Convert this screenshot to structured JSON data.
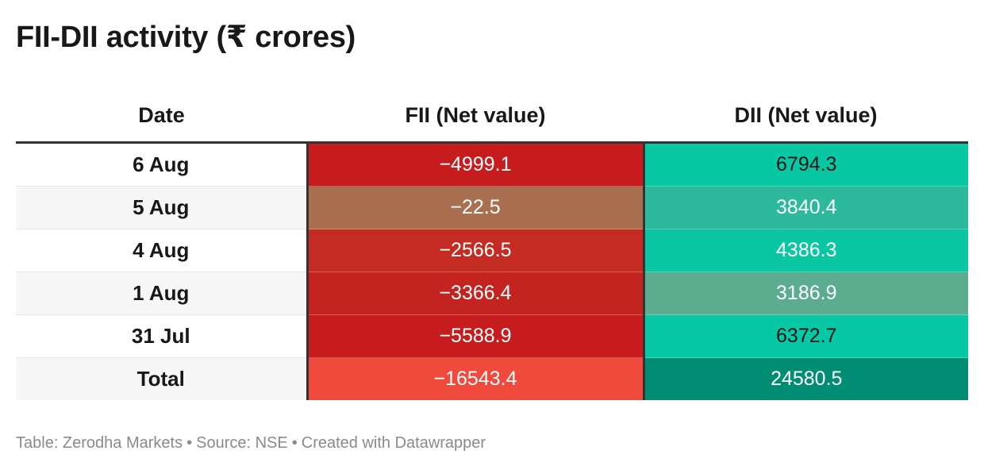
{
  "title": "FII-DII activity (₹ crores)",
  "chart_data": {
    "type": "table",
    "title": "FII-DII activity (₹ crores)",
    "columns": [
      "Date",
      "FII (Net value)",
      "DII (Net value)"
    ],
    "rows": [
      {
        "date": "6 Aug",
        "fii": "−4999.1",
        "dii": "6794.3",
        "fii_color": "#c61c1e",
        "dii_color": "#08c8a4",
        "dii_text": "dark"
      },
      {
        "date": "5 Aug",
        "fii": "−22.5",
        "dii": "3840.4",
        "fii_color": "#a87050",
        "dii_color": "#2db99c",
        "dii_text": "light"
      },
      {
        "date": "4 Aug",
        "fii": "−2566.5",
        "dii": "4386.3",
        "fii_color": "#c42b22",
        "dii_color": "#0bc6a3",
        "dii_text": "light"
      },
      {
        "date": "1 Aug",
        "fii": "−3366.4",
        "dii": "3186.9",
        "fii_color": "#c42420",
        "dii_color": "#5cad8f",
        "dii_text": "light"
      },
      {
        "date": "31 Jul",
        "fii": "−5588.9",
        "dii": "6372.7",
        "fii_color": "#c61c1e",
        "dii_color": "#07c8a4",
        "dii_text": "dark"
      },
      {
        "date": "Total",
        "fii": "−16543.4",
        "dii": "24580.5",
        "fii_color": "#ef4a3c",
        "dii_color": "#008d73",
        "dii_text": "light"
      }
    ]
  },
  "footer": {
    "table_credit": "Table: Zerodha Markets",
    "separator": "•",
    "source": "Source: NSE",
    "created_with": "Created with Datawrapper"
  }
}
